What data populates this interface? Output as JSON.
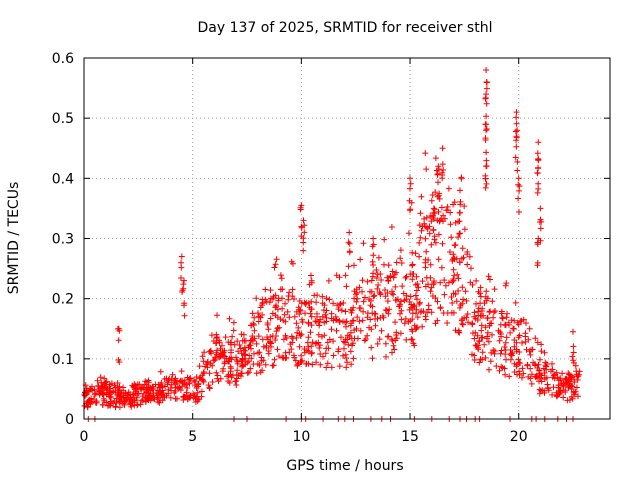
{
  "chart_data": {
    "type": "scatter",
    "title": "Day 137 of 2025, SRMTID for receiver sthl",
    "xlabel": "GPS time / hours",
    "ylabel": "SRMTID / TECUs",
    "xlim": [
      0,
      24.2
    ],
    "ylim": [
      0,
      0.6
    ],
    "x_ticks": [
      0,
      5,
      10,
      15,
      20
    ],
    "x_tick_labels": [
      "0",
      "5",
      "10",
      "15",
      "20"
    ],
    "y_ticks": [
      0,
      0.1,
      0.2,
      0.3,
      0.4,
      0.5,
      0.6
    ],
    "y_tick_labels": [
      "0",
      "0.1",
      "0.2",
      "0.3",
      "0.4",
      "0.5",
      "0.6"
    ],
    "grid": true,
    "marker": "plus",
    "series": [
      {
        "name": "SRMTID",
        "color": "#ff0000",
        "trend": [
          {
            "x": 0.0,
            "y": 0.035
          },
          {
            "x": 1.0,
            "y": 0.04
          },
          {
            "x": 2.0,
            "y": 0.035
          },
          {
            "x": 3.0,
            "y": 0.045
          },
          {
            "x": 4.0,
            "y": 0.05
          },
          {
            "x": 5.0,
            "y": 0.045
          },
          {
            "x": 5.5,
            "y": 0.06
          },
          {
            "x": 6.0,
            "y": 0.1
          },
          {
            "x": 7.0,
            "y": 0.09
          },
          {
            "x": 8.0,
            "y": 0.13
          },
          {
            "x": 9.0,
            "y": 0.16
          },
          {
            "x": 10.0,
            "y": 0.14
          },
          {
            "x": 11.0,
            "y": 0.15
          },
          {
            "x": 12.0,
            "y": 0.14
          },
          {
            "x": 13.0,
            "y": 0.17
          },
          {
            "x": 14.0,
            "y": 0.18
          },
          {
            "x": 15.0,
            "y": 0.2
          },
          {
            "x": 16.0,
            "y": 0.27
          },
          {
            "x": 17.0,
            "y": 0.26
          },
          {
            "x": 18.0,
            "y": 0.16
          },
          {
            "x": 19.0,
            "y": 0.13
          },
          {
            "x": 20.0,
            "y": 0.12
          },
          {
            "x": 21.0,
            "y": 0.07
          },
          {
            "x": 22.0,
            "y": 0.05
          },
          {
            "x": 22.8,
            "y": 0.06
          }
        ],
        "spikes": [
          {
            "x": 1.6,
            "y": 0.15
          },
          {
            "x": 4.5,
            "y": 0.27
          },
          {
            "x": 4.6,
            "y": 0.23
          },
          {
            "x": 7.3,
            "y": 0.13
          },
          {
            "x": 10.0,
            "y": 0.355
          },
          {
            "x": 10.1,
            "y": 0.33
          },
          {
            "x": 15.0,
            "y": 0.4
          },
          {
            "x": 16.5,
            "y": 0.45
          },
          {
            "x": 16.3,
            "y": 0.42
          },
          {
            "x": 18.5,
            "y": 0.58
          },
          {
            "x": 18.5,
            "y": 0.54
          },
          {
            "x": 18.5,
            "y": 0.48
          },
          {
            "x": 18.5,
            "y": 0.42
          },
          {
            "x": 19.9,
            "y": 0.51
          },
          {
            "x": 19.9,
            "y": 0.47
          },
          {
            "x": 20.0,
            "y": 0.4
          },
          {
            "x": 20.9,
            "y": 0.46
          },
          {
            "x": 20.9,
            "y": 0.43
          },
          {
            "x": 21.0,
            "y": 0.35
          },
          {
            "x": 20.9,
            "y": 0.3
          },
          {
            "x": 12.2,
            "y": 0.31
          },
          {
            "x": 13.3,
            "y": 0.3
          },
          {
            "x": 17.3,
            "y": 0.38
          },
          {
            "x": 16.1,
            "y": 0.35
          },
          {
            "x": 22.5,
            "y": 0.145
          }
        ],
        "zero_points_x": [
          0.2,
          0.5,
          6.9,
          7.5,
          9.3,
          10.0,
          10.2,
          11.0,
          11.7,
          12.0,
          12.4,
          13.2,
          13.7,
          14.1,
          15.2,
          16.0,
          16.8,
          17.3,
          17.6,
          18.0,
          18.2,
          19.6,
          20.6,
          20.8,
          21.2,
          21.8,
          22.2,
          22.5
        ]
      }
    ]
  }
}
